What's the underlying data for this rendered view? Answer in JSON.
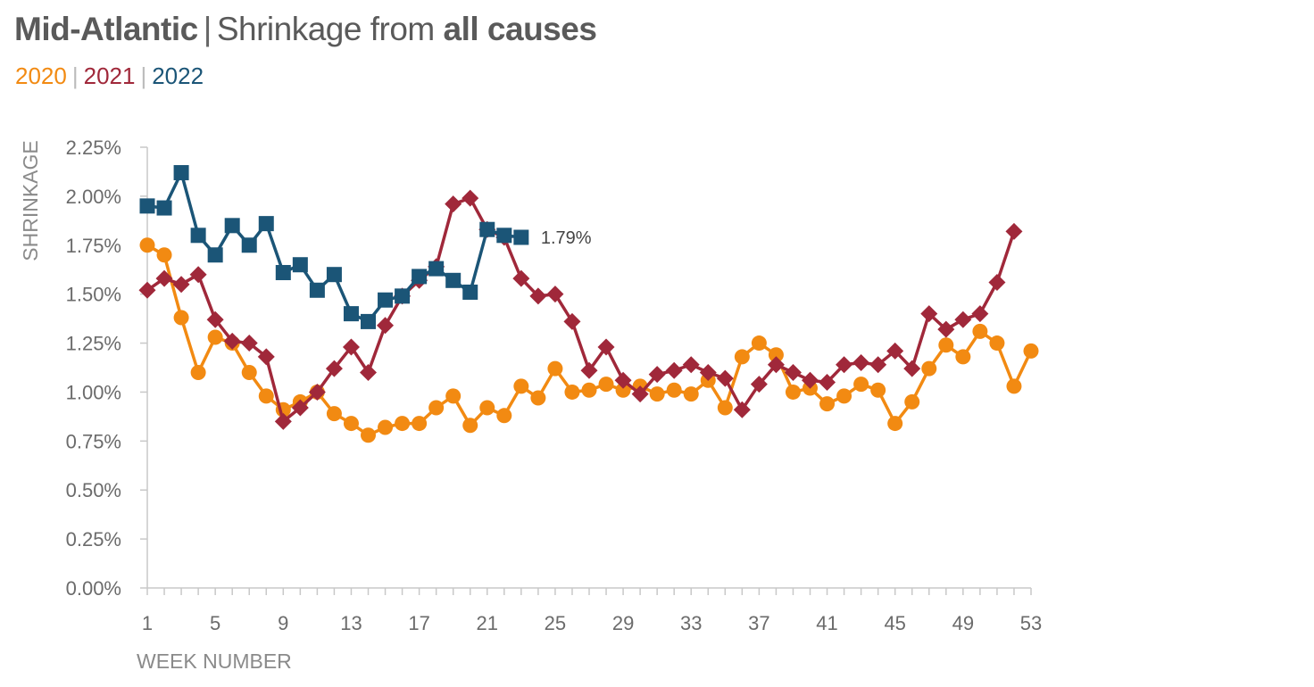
{
  "title": {
    "region": "Mid-Atlantic",
    "separator": "|",
    "prefix": "Shrinkage from",
    "emphasis": "all causes"
  },
  "legend": {
    "separator": "|",
    "items": [
      {
        "label": "2020",
        "color": "#F28A12"
      },
      {
        "label": "2021",
        "color": "#A0283A"
      },
      {
        "label": "2022",
        "color": "#1B5577"
      }
    ]
  },
  "chart_data": {
    "type": "line",
    "title": "Mid-Atlantic | Shrinkage from all causes",
    "xlabel": "WEEK NUMBER",
    "ylabel": "SHRINKAGE",
    "xlim": [
      1,
      53
    ],
    "ylim": [
      0,
      2.25
    ],
    "xticks": [
      1,
      5,
      9,
      13,
      17,
      21,
      25,
      29,
      33,
      37,
      41,
      45,
      49,
      53
    ],
    "yticks": [
      0,
      0.25,
      0.5,
      0.75,
      1.0,
      1.25,
      1.5,
      1.75,
      2.0,
      2.25
    ],
    "ytick_labels": [
      "0.00%",
      "0.25%",
      "0.50%",
      "0.75%",
      "1.00%",
      "1.25%",
      "1.50%",
      "1.75%",
      "2.00%",
      "2.25%"
    ],
    "grid": false,
    "series": [
      {
        "name": "2020",
        "color": "#F28A12",
        "marker": "circle",
        "x": [
          1,
          2,
          3,
          4,
          5,
          6,
          7,
          8,
          9,
          10,
          11,
          12,
          13,
          14,
          15,
          16,
          17,
          18,
          19,
          20,
          21,
          22,
          23,
          24,
          25,
          26,
          27,
          28,
          29,
          30,
          31,
          32,
          33,
          34,
          35,
          36,
          37,
          38,
          39,
          40,
          41,
          42,
          43,
          44,
          45,
          46,
          47,
          48,
          49,
          50,
          51,
          52,
          53
        ],
        "values": [
          1.75,
          1.7,
          1.38,
          1.1,
          1.28,
          1.25,
          1.1,
          0.98,
          0.91,
          0.95,
          1.0,
          0.89,
          0.84,
          0.78,
          0.82,
          0.84,
          0.84,
          0.92,
          0.98,
          0.83,
          0.92,
          0.88,
          1.03,
          0.97,
          1.12,
          1.0,
          1.01,
          1.04,
          1.01,
          1.03,
          0.99,
          1.01,
          0.99,
          1.06,
          0.92,
          1.18,
          1.25,
          1.19,
          1.0,
          1.02,
          0.94,
          0.98,
          1.04,
          1.01,
          0.84,
          0.95,
          1.12,
          1.24,
          1.18,
          1.31,
          1.25,
          1.03,
          1.21
        ]
      },
      {
        "name": "2021",
        "color": "#A0283A",
        "marker": "diamond",
        "x": [
          1,
          2,
          3,
          4,
          5,
          6,
          7,
          8,
          9,
          10,
          11,
          12,
          13,
          14,
          15,
          16,
          17,
          18,
          19,
          20,
          21,
          22,
          23,
          24,
          25,
          26,
          27,
          28,
          29,
          30,
          31,
          32,
          33,
          34,
          35,
          36,
          37,
          38,
          39,
          40,
          41,
          42,
          43,
          44,
          45,
          46,
          47,
          48,
          49,
          50,
          51,
          52
        ],
        "values": [
          1.52,
          1.58,
          1.55,
          1.6,
          1.37,
          1.26,
          1.25,
          1.18,
          0.85,
          0.92,
          1.0,
          1.12,
          1.23,
          1.1,
          1.34,
          1.49,
          1.57,
          1.64,
          1.96,
          1.99,
          1.83,
          1.79,
          1.58,
          1.49,
          1.5,
          1.36,
          1.11,
          1.23,
          1.06,
          0.99,
          1.09,
          1.11,
          1.14,
          1.1,
          1.07,
          0.91,
          1.04,
          1.14,
          1.1,
          1.06,
          1.05,
          1.14,
          1.15,
          1.14,
          1.21,
          1.12,
          1.4,
          1.32,
          1.37,
          1.4,
          1.56,
          1.82
        ]
      },
      {
        "name": "2022",
        "color": "#1B5577",
        "marker": "square",
        "x": [
          1,
          2,
          3,
          4,
          5,
          6,
          7,
          8,
          9,
          10,
          11,
          12,
          13,
          14,
          15,
          16,
          17,
          18,
          19,
          20,
          21,
          22,
          23
        ],
        "values": [
          1.95,
          1.94,
          2.12,
          1.8,
          1.7,
          1.85,
          1.75,
          1.86,
          1.61,
          1.65,
          1.52,
          1.6,
          1.4,
          1.36,
          1.47,
          1.49,
          1.59,
          1.63,
          1.57,
          1.51,
          1.83,
          1.8,
          1.79
        ],
        "end_label": "1.79%"
      }
    ]
  }
}
